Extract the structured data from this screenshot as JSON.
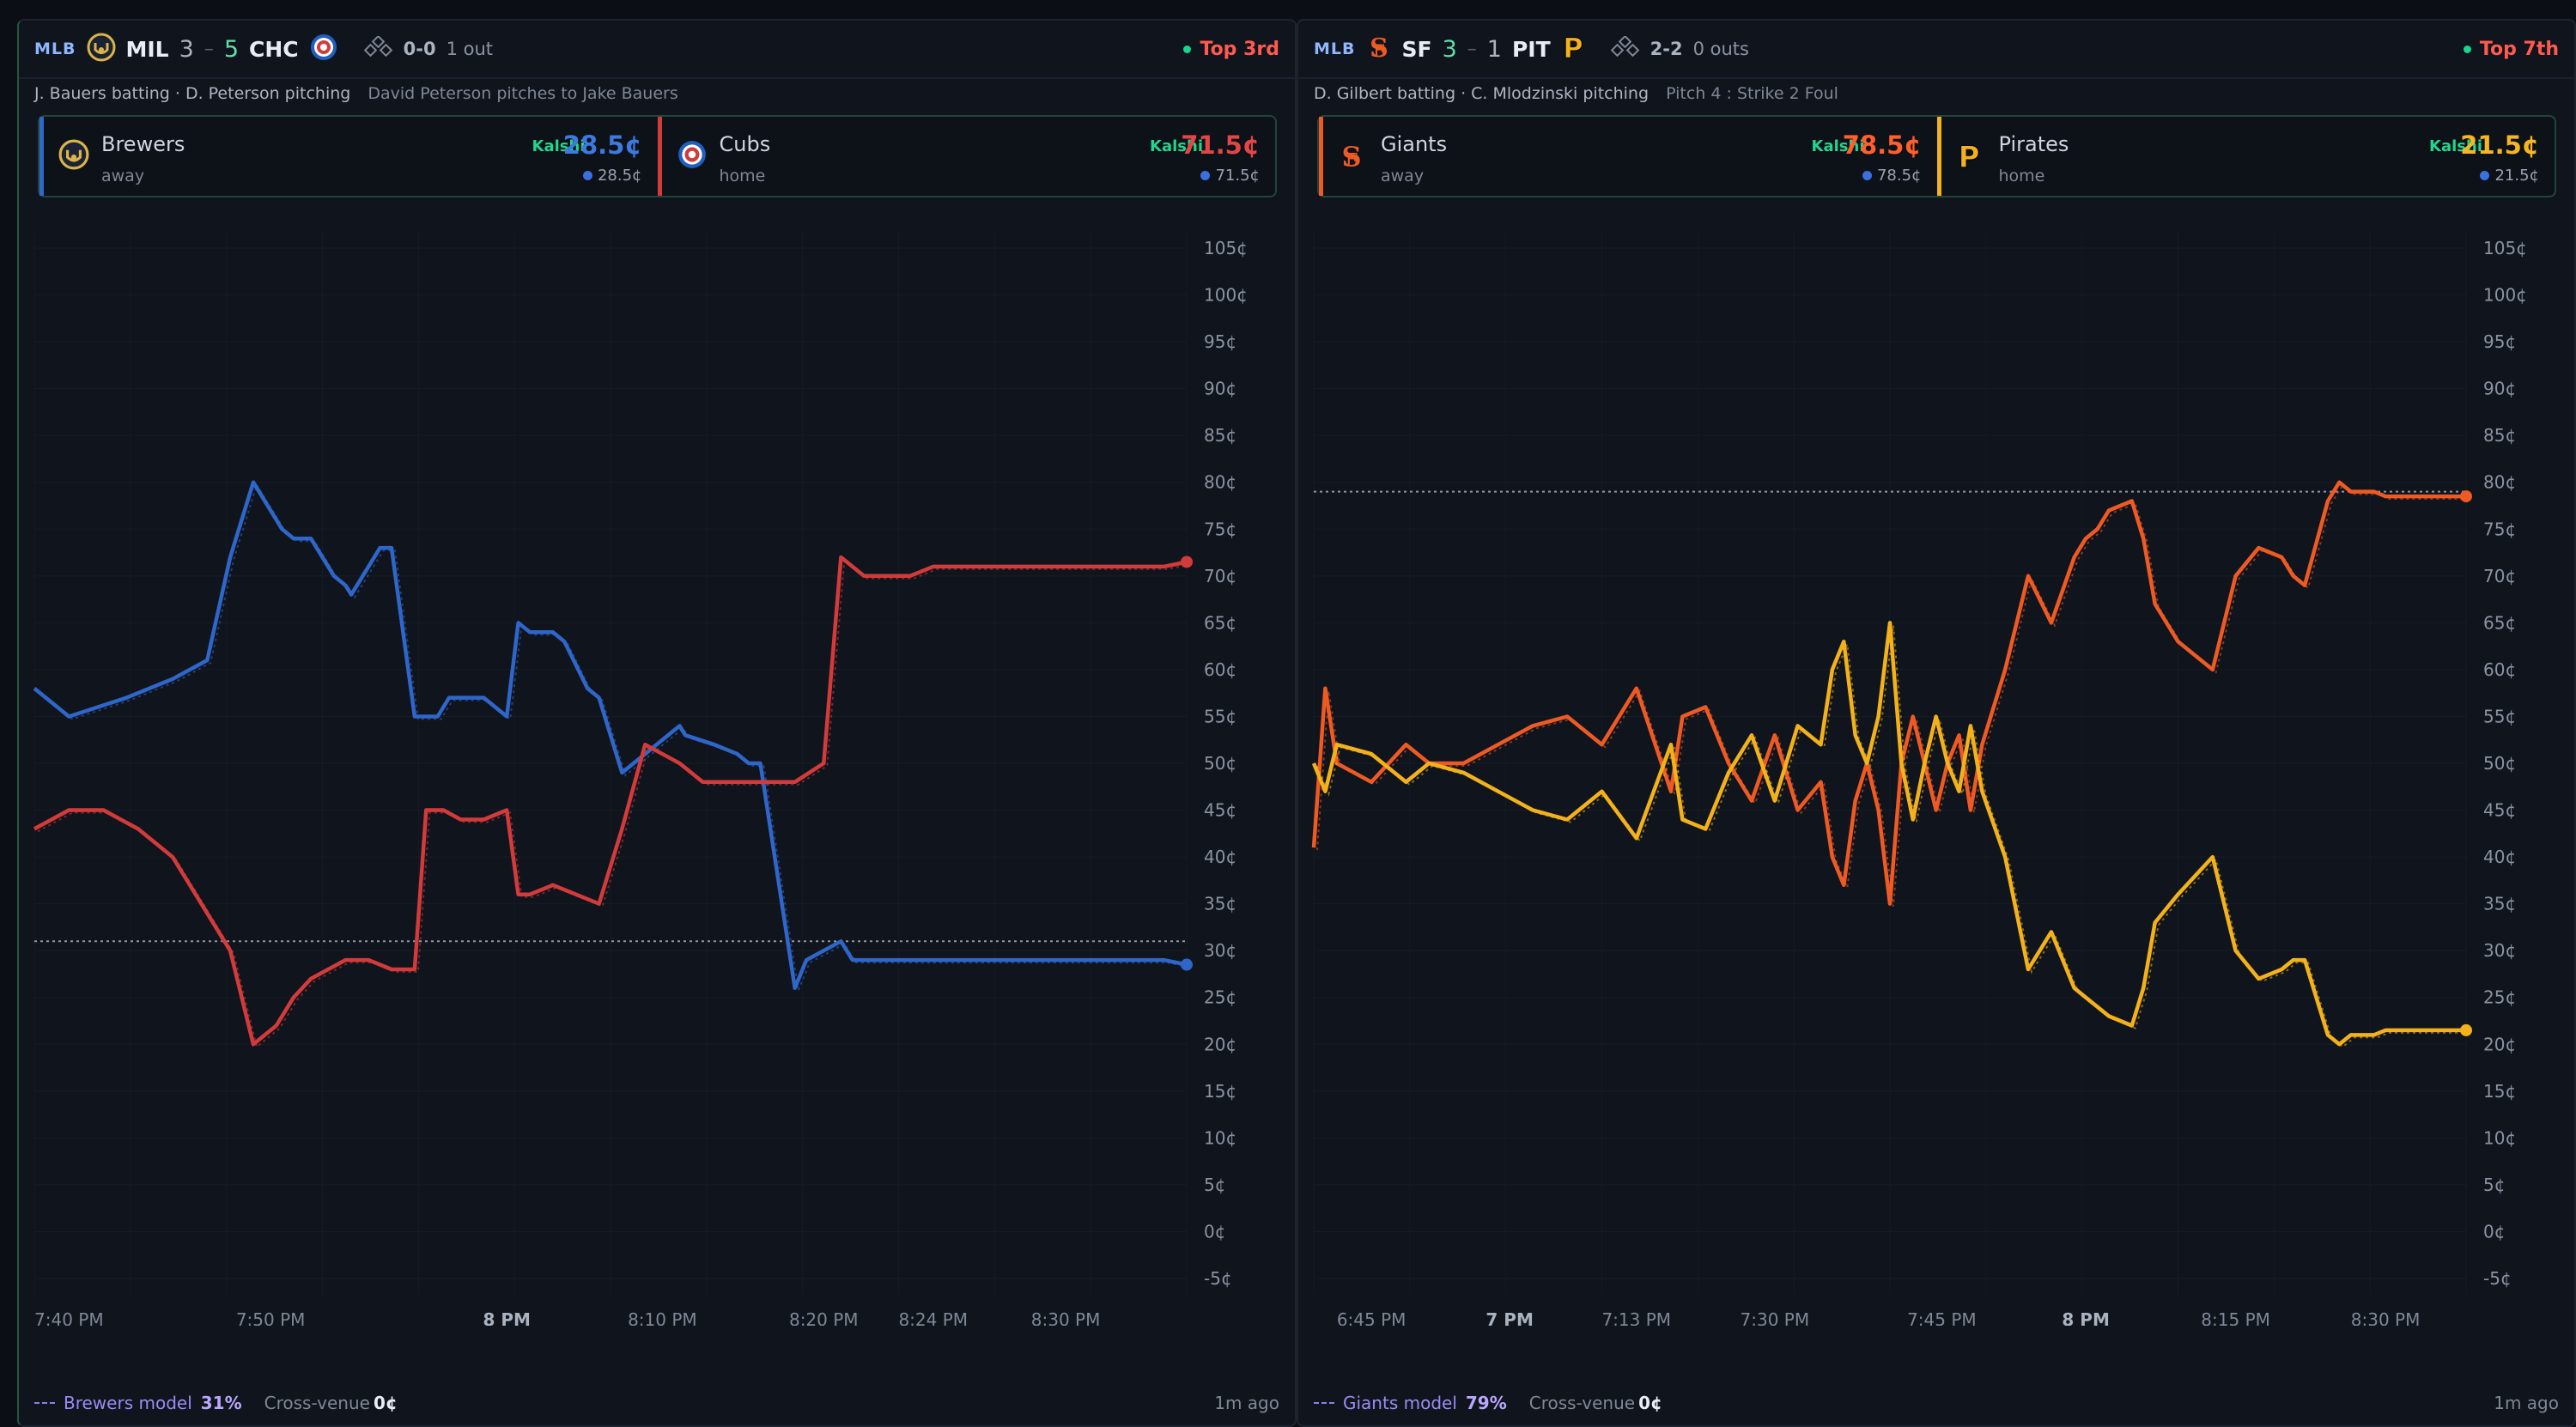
{
  "games": [
    {
      "league": "MLB",
      "away": {
        "abbr": "MIL",
        "score": "3",
        "name": "Brewers",
        "side": "away",
        "color": "#2f66c9",
        "kalshi": "Kalshi",
        "price": "28.5¢",
        "poly": "28.5¢"
      },
      "home": {
        "abbr": "CHC",
        "score": "5",
        "name": "Cubs",
        "side": "home",
        "color": "#d23b3b",
        "kalshi": "Kalshi",
        "price": "71.5¢",
        "poly": "71.5¢"
      },
      "separator": "–",
      "count": "0-0",
      "outs": "1 out",
      "inning": "Top 3rd",
      "matchup": "J. Bauers batting · D. Peterson pitching",
      "event": "David Peterson pitches to Jake Bauers",
      "model_label": "Brewers model",
      "model_value": "31%",
      "cross_label": "Cross-venue",
      "cross_value": "0¢",
      "updated": "1m ago",
      "chart_data": {
        "type": "line",
        "y_ticks": [
          "105¢",
          "100¢",
          "95¢",
          "90¢",
          "85¢",
          "80¢",
          "75¢",
          "70¢",
          "65¢",
          "60¢",
          "55¢",
          "50¢",
          "45¢",
          "40¢",
          "35¢",
          "30¢",
          "25¢",
          "20¢",
          "15¢",
          "10¢",
          "5¢",
          "0¢",
          "-5¢"
        ],
        "ylim": [
          -5,
          105
        ],
        "x_ticks": [
          "7:40 PM",
          "7:50 PM",
          "8 PM",
          "8:10 PM",
          "8:20 PM",
          "8:24 PM",
          "8:30 PM"
        ],
        "x_tick_bold": [
          false,
          false,
          true,
          false,
          false,
          false,
          false
        ],
        "x_tick_frac": [
          0.0,
          0.205,
          0.41,
          0.545,
          0.685,
          0.78,
          0.895
        ],
        "model_line": 31,
        "series": [
          {
            "name": "Brewers",
            "color": "#2f66c9",
            "x": [
              0,
              0.03,
              0.08,
              0.12,
              0.15,
              0.17,
              0.19,
              0.215,
              0.225,
              0.24,
              0.26,
              0.27,
              0.275,
              0.3,
              0.31,
              0.33,
              0.35,
              0.36,
              0.375,
              0.39,
              0.41,
              0.42,
              0.43,
              0.45,
              0.46,
              0.48,
              0.49,
              0.51,
              0.53,
              0.55,
              0.56,
              0.565,
              0.59,
              0.61,
              0.62,
              0.63,
              0.66,
              0.67,
              0.685,
              0.7,
              0.71,
              0.72,
              0.74,
              0.77,
              0.78,
              0.81,
              0.83,
              0.84,
              0.86,
              0.87,
              0.875,
              0.89,
              0.9,
              0.92,
              0.94,
              0.96,
              0.98,
              1.0
            ],
            "y": [
              58,
              55,
              57,
              59,
              61,
              72,
              80,
              75,
              74,
              74,
              70,
              69,
              68,
              73,
              73,
              55,
              55,
              57,
              57,
              57,
              55,
              65,
              64,
              64,
              63,
              58,
              57,
              49,
              51,
              53,
              54,
              53,
              52,
              51,
              50,
              50,
              26,
              29,
              30,
              31,
              29,
              29,
              29,
              29,
              29,
              29,
              29,
              29,
              29,
              29,
              29,
              29,
              29,
              29,
              29,
              29,
              29,
              28.5
            ]
          },
          {
            "name": "Cubs",
            "color": "#d23b3b",
            "x": [
              0,
              0.03,
              0.06,
              0.09,
              0.12,
              0.17,
              0.19,
              0.21,
              0.225,
              0.24,
              0.27,
              0.29,
              0.31,
              0.33,
              0.34,
              0.355,
              0.37,
              0.39,
              0.41,
              0.42,
              0.43,
              0.45,
              0.47,
              0.49,
              0.51,
              0.53,
              0.56,
              0.58,
              0.6,
              0.62,
              0.64,
              0.66,
              0.685,
              0.7,
              0.72,
              0.74,
              0.76,
              0.78,
              0.8,
              0.82,
              0.84,
              0.86,
              0.87,
              0.88,
              0.9,
              0.92,
              0.94,
              0.96,
              0.98,
              1.0
            ],
            "y": [
              43,
              45,
              45,
              43,
              40,
              30,
              20,
              22,
              25,
              27,
              29,
              29,
              28,
              28,
              45,
              45,
              44,
              44,
              45,
              36,
              36,
              37,
              36,
              35,
              43,
              52,
              50,
              48,
              48,
              48,
              48,
              48,
              50,
              72,
              70,
              70,
              70,
              71,
              71,
              71,
              71,
              71,
              71,
              71,
              71,
              71,
              71,
              71,
              71,
              71.5
            ]
          }
        ]
      }
    },
    {
      "league": "MLB",
      "away": {
        "abbr": "SF",
        "score": "3",
        "name": "Giants",
        "side": "away",
        "color": "#ee5a24",
        "kalshi": "Kalshi",
        "price": "78.5¢",
        "poly": "78.5¢"
      },
      "home": {
        "abbr": "PIT",
        "score": "1",
        "name": "Pirates",
        "side": "home",
        "color": "#f3b21c",
        "kalshi": "Kalshi",
        "price": "21.5¢",
        "poly": "21.5¢"
      },
      "separator": "–",
      "count": "2-2",
      "outs": "0 outs",
      "inning": "Top 7th",
      "matchup": "D. Gilbert batting · C. Mlodzinski pitching",
      "event": "Pitch 4 : Strike 2 Foul",
      "model_label": "Giants model",
      "model_value": "79%",
      "cross_label": "Cross-venue",
      "cross_value": "0¢",
      "updated": "1m ago",
      "chart_data": {
        "type": "line",
        "y_ticks": [
          "105¢",
          "100¢",
          "95¢",
          "90¢",
          "85¢",
          "80¢",
          "75¢",
          "70¢",
          "65¢",
          "60¢",
          "55¢",
          "50¢",
          "45¢",
          "40¢",
          "35¢",
          "30¢",
          "25¢",
          "20¢",
          "15¢",
          "10¢",
          "5¢",
          "0¢",
          "-5¢"
        ],
        "ylim": [
          -5,
          105
        ],
        "x_ticks": [
          "6:45 PM",
          "7 PM",
          "7:13 PM",
          "7:30 PM",
          "7:45 PM",
          "8 PM",
          "8:15 PM",
          "8:30 PM"
        ],
        "x_tick_bold": [
          false,
          true,
          false,
          false,
          false,
          true,
          false,
          false
        ],
        "x_tick_frac": [
          0.02,
          0.17,
          0.28,
          0.4,
          0.545,
          0.67,
          0.8,
          0.93
        ],
        "model_line": 79,
        "series": [
          {
            "name": "Giants",
            "color": "#ee5a24",
            "x": [
              0,
              0.01,
              0.02,
              0.05,
              0.08,
              0.1,
              0.13,
              0.16,
              0.19,
              0.22,
              0.25,
              0.28,
              0.31,
              0.32,
              0.34,
              0.36,
              0.38,
              0.4,
              0.42,
              0.44,
              0.45,
              0.46,
              0.47,
              0.48,
              0.49,
              0.5,
              0.51,
              0.52,
              0.53,
              0.54,
              0.55,
              0.56,
              0.57,
              0.58,
              0.6,
              0.62,
              0.64,
              0.66,
              0.67,
              0.68,
              0.69,
              0.71,
              0.72,
              0.73,
              0.75,
              0.78,
              0.8,
              0.82,
              0.84,
              0.85,
              0.86,
              0.88,
              0.89,
              0.9,
              0.92,
              0.93,
              0.95,
              0.97,
              1.0
            ],
            "y": [
              41,
              58,
              50,
              48,
              52,
              50,
              50,
              52,
              54,
              55,
              52,
              58,
              47,
              55,
              56,
              50,
              46,
              53,
              45,
              48,
              40,
              37,
              46,
              50,
              45,
              35,
              50,
              55,
              50,
              45,
              50,
              53,
              45,
              52,
              60,
              70,
              65,
              72,
              74,
              75,
              77,
              78,
              74,
              67,
              63,
              60,
              70,
              73,
              72,
              70,
              69,
              78,
              80,
              79,
              79,
              78.5,
              78.5,
              78.5,
              78.5
            ]
          },
          {
            "name": "Pirates",
            "color": "#f3b21c",
            "x": [
              0,
              0.01,
              0.02,
              0.05,
              0.08,
              0.1,
              0.13,
              0.16,
              0.19,
              0.22,
              0.25,
              0.28,
              0.31,
              0.32,
              0.34,
              0.36,
              0.38,
              0.4,
              0.42,
              0.44,
              0.45,
              0.46,
              0.47,
              0.48,
              0.49,
              0.5,
              0.51,
              0.52,
              0.53,
              0.54,
              0.55,
              0.56,
              0.57,
              0.58,
              0.6,
              0.62,
              0.64,
              0.66,
              0.67,
              0.68,
              0.69,
              0.71,
              0.72,
              0.73,
              0.75,
              0.78,
              0.8,
              0.82,
              0.84,
              0.85,
              0.86,
              0.88,
              0.89,
              0.9,
              0.92,
              0.93,
              0.95,
              0.97,
              1.0
            ],
            "y": [
              50,
              47,
              52,
              51,
              48,
              50,
              49,
              47,
              45,
              44,
              47,
              42,
              52,
              44,
              43,
              49,
              53,
              46,
              54,
              52,
              60,
              63,
              53,
              50,
              55,
              65,
              50,
              44,
              50,
              55,
              50,
              47,
              54,
              47,
              40,
              28,
              32,
              26,
              25,
              24,
              23,
              22,
              26,
              33,
              36,
              40,
              30,
              27,
              28,
              29,
              29,
              21,
              20,
              21,
              21,
              21.5,
              21.5,
              21.5,
              21.5
            ]
          }
        ]
      }
    }
  ]
}
